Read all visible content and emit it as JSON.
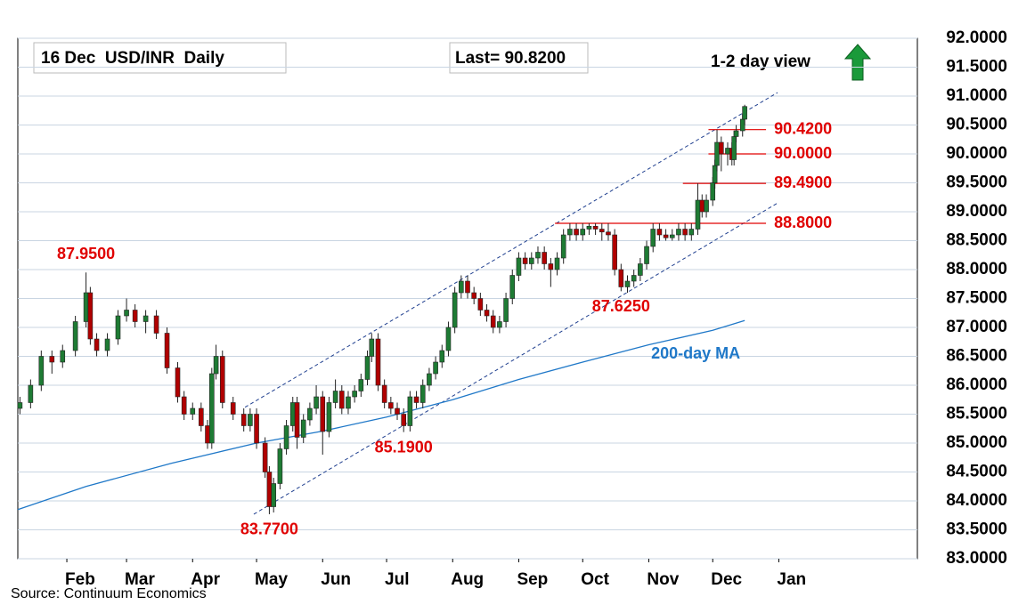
{
  "chart_data": {
    "type": "candlestick",
    "title": "16 Dec  USD/INR  Daily",
    "subtitle": "Last= 90.8200",
    "view_label": "1-2 day view",
    "source": "Source: Continuum Economics",
    "up_color": "#1e7b34",
    "down_color": "#b00000",
    "grid": true,
    "xlim": [
      8,
      430
    ],
    "xticks": [
      {
        "value": 31,
        "label": "Feb"
      },
      {
        "value": 59,
        "label": "Mar"
      },
      {
        "value": 90,
        "label": "Apr"
      },
      {
        "value": 120,
        "label": "May"
      },
      {
        "value": 151,
        "label": "Jun"
      },
      {
        "value": 181,
        "label": "Jul"
      },
      {
        "value": 212,
        "label": "Aug"
      },
      {
        "value": 243,
        "label": "Sep"
      },
      {
        "value": 273,
        "label": "Oct"
      },
      {
        "value": 304,
        "label": "Nov"
      },
      {
        "value": 334,
        "label": "Dec"
      },
      {
        "value": 365,
        "label": "Jan"
      }
    ],
    "ylim": [
      83,
      92
    ],
    "yticks": [
      {
        "value": 83,
        "label": "83.0000"
      },
      {
        "value": 83.5,
        "label": "83.5000"
      },
      {
        "value": 84,
        "label": "84.0000"
      },
      {
        "value": 84.5,
        "label": "84.5000"
      },
      {
        "value": 85,
        "label": "85.0000"
      },
      {
        "value": 85.5,
        "label": "85.5000"
      },
      {
        "value": 86,
        "label": "86.0000"
      },
      {
        "value": 86.5,
        "label": "86.5000"
      },
      {
        "value": 87,
        "label": "87.0000"
      },
      {
        "value": 87.5,
        "label": "87.5000"
      },
      {
        "value": 88,
        "label": "88.0000"
      },
      {
        "value": 88.5,
        "label": "88.5000"
      },
      {
        "value": 89,
        "label": "89.0000"
      },
      {
        "value": 89.5,
        "label": "89.5000"
      },
      {
        "value": 90,
        "label": "90.0000"
      },
      {
        "value": 90.5,
        "label": "90.5000"
      },
      {
        "value": 91,
        "label": "91.0000"
      },
      {
        "value": 91.5,
        "label": "91.5000"
      },
      {
        "value": 92,
        "label": "92.0000"
      }
    ],
    "x": [
      9,
      14,
      19,
      24,
      29,
      35,
      40,
      42,
      45,
      50,
      55,
      59,
      63,
      68,
      73,
      78,
      83,
      86,
      90,
      94,
      97,
      99,
      101,
      104,
      109,
      114,
      117,
      120,
      124,
      126,
      128,
      131,
      134,
      137,
      139,
      142,
      145,
      148,
      151,
      154,
      157,
      160,
      163,
      166,
      169,
      172,
      174,
      177,
      180,
      183,
      186,
      189,
      192,
      195,
      198,
      201,
      204,
      207,
      210,
      213,
      216,
      219,
      222,
      225,
      228,
      231,
      234,
      237,
      240,
      243,
      246,
      249,
      252,
      255,
      258,
      261,
      264,
      267,
      270,
      273,
      276,
      279,
      282,
      285,
      288,
      291,
      294,
      297,
      300,
      303,
      306,
      309,
      312,
      315,
      318,
      321,
      324,
      327,
      329,
      331,
      334,
      335,
      336,
      338,
      341,
      343,
      344,
      345,
      348,
      349
    ],
    "open": [
      85.6,
      85.7,
      86.0,
      86.5,
      86.4,
      86.6,
      87.1,
      87.6,
      86.8,
      86.6,
      86.8,
      87.2,
      87.3,
      87.1,
      87.2,
      86.9,
      86.3,
      85.8,
      85.5,
      85.6,
      85.3,
      85.0,
      86.2,
      86.5,
      85.7,
      85.5,
      85.3,
      85.5,
      85.0,
      84.5,
      83.9,
      84.3,
      84.9,
      85.3,
      85.7,
      85.1,
      85.4,
      85.6,
      85.8,
      85.2,
      85.7,
      85.9,
      85.6,
      85.8,
      85.9,
      86.1,
      86.5,
      86.8,
      86.0,
      85.7,
      85.6,
      85.5,
      85.3,
      85.8,
      85.7,
      86.0,
      86.2,
      86.4,
      86.6,
      87.0,
      87.6,
      87.8,
      87.6,
      87.5,
      87.3,
      87.2,
      87.0,
      87.1,
      87.5,
      87.9,
      88.2,
      88.1,
      88.2,
      88.3,
      88.1,
      88.0,
      88.2,
      88.6,
      88.7,
      88.6,
      88.7,
      88.75,
      88.7,
      88.65,
      88.6,
      88.0,
      87.7,
      87.8,
      87.9,
      88.1,
      88.4,
      88.7,
      88.6,
      88.55,
      88.6,
      88.7,
      88.6,
      88.7,
      89.2,
      89.0,
      89.2,
      89.5,
      89.8,
      90.2,
      90.0,
      90.1,
      89.9,
      90.3,
      90.4,
      90.6
    ],
    "high": [
      85.8,
      86.1,
      86.6,
      86.6,
      86.7,
      87.2,
      87.95,
      87.7,
      86.9,
      86.9,
      87.3,
      87.5,
      87.4,
      87.3,
      87.3,
      87.0,
      86.4,
      85.9,
      85.7,
      85.7,
      85.4,
      86.3,
      86.7,
      86.6,
      85.8,
      85.6,
      85.6,
      85.6,
      85.1,
      84.6,
      84.4,
      85.0,
      85.4,
      85.8,
      85.8,
      85.5,
      85.7,
      86.0,
      85.9,
      85.8,
      86.1,
      86.0,
      85.9,
      86.0,
      86.2,
      86.6,
      86.9,
      86.9,
      86.1,
      85.8,
      85.7,
      85.6,
      85.9,
      85.9,
      86.1,
      86.3,
      86.5,
      86.7,
      87.1,
      87.7,
      87.9,
      87.9,
      87.7,
      87.6,
      87.4,
      87.3,
      87.2,
      87.6,
      88.0,
      88.3,
      88.3,
      88.3,
      88.4,
      88.4,
      88.2,
      88.3,
      88.7,
      88.8,
      88.8,
      88.8,
      88.8,
      88.8,
      88.8,
      88.8,
      88.7,
      88.1,
      87.9,
      88.0,
      88.2,
      88.5,
      88.8,
      88.8,
      88.7,
      88.7,
      88.8,
      88.8,
      88.8,
      89.49,
      89.3,
      89.3,
      89.6,
      89.9,
      90.42,
      90.3,
      90.2,
      90.2,
      90.4,
      90.5,
      90.7,
      90.85
    ],
    "low": [
      85.5,
      85.6,
      85.9,
      86.2,
      86.3,
      86.5,
      87.0,
      86.7,
      86.5,
      86.5,
      86.7,
      87.1,
      87.0,
      86.9,
      86.8,
      86.2,
      85.7,
      85.4,
      85.4,
      85.2,
      84.9,
      84.9,
      86.1,
      85.6,
      85.4,
      85.2,
      85.2,
      84.9,
      84.4,
      83.77,
      83.8,
      84.2,
      84.8,
      85.2,
      84.9,
      85.0,
      85.3,
      85.5,
      84.8,
      85.1,
      85.6,
      85.5,
      85.5,
      85.7,
      85.8,
      86.0,
      86.4,
      85.9,
      85.6,
      85.5,
      85.4,
      85.19,
      85.2,
      85.6,
      85.6,
      85.9,
      86.1,
      86.3,
      86.5,
      86.9,
      87.5,
      87.5,
      87.4,
      87.2,
      87.1,
      86.9,
      86.9,
      87.0,
      87.4,
      87.8,
      88.0,
      88.0,
      88.1,
      88.0,
      87.7,
      87.9,
      88.1,
      88.5,
      88.5,
      88.5,
      88.6,
      88.6,
      88.5,
      88.5,
      87.9,
      87.625,
      87.6,
      87.7,
      87.8,
      88.0,
      88.3,
      88.5,
      88.5,
      88.5,
      88.5,
      88.5,
      88.5,
      88.6,
      88.9,
      88.9,
      89.1,
      89.4,
      89.7,
      89.7,
      89.8,
      89.8,
      89.8,
      90.2,
      90.3,
      90.5
    ],
    "close": [
      85.7,
      86.0,
      86.5,
      86.4,
      86.6,
      87.1,
      87.6,
      86.8,
      86.6,
      86.8,
      87.2,
      87.3,
      87.1,
      87.2,
      86.9,
      86.3,
      85.8,
      85.5,
      85.6,
      85.3,
      85.0,
      86.2,
      86.5,
      85.7,
      85.5,
      85.3,
      85.5,
      85.0,
      84.5,
      83.9,
      84.3,
      84.9,
      85.3,
      85.7,
      85.1,
      85.4,
      85.6,
      85.8,
      85.2,
      85.7,
      85.9,
      85.6,
      85.8,
      85.9,
      86.1,
      86.5,
      86.8,
      86.0,
      85.7,
      85.6,
      85.5,
      85.3,
      85.8,
      85.7,
      86.0,
      86.2,
      86.4,
      86.6,
      87.0,
      87.6,
      87.8,
      87.6,
      87.5,
      87.3,
      87.2,
      87.0,
      87.1,
      87.5,
      87.9,
      88.2,
      88.1,
      88.2,
      88.3,
      88.1,
      88.0,
      88.2,
      88.6,
      88.7,
      88.6,
      88.7,
      88.75,
      88.7,
      88.65,
      88.6,
      88.0,
      87.7,
      87.8,
      87.9,
      88.1,
      88.4,
      88.7,
      88.6,
      88.55,
      88.6,
      88.7,
      88.6,
      88.7,
      89.2,
      89.0,
      89.2,
      89.5,
      89.8,
      90.2,
      90.0,
      90.1,
      89.9,
      90.3,
      90.4,
      90.6,
      90.82
    ],
    "moving_average": {
      "name": "200-day MA",
      "color": "#1f78c8",
      "x": [
        8,
        40,
        80,
        120,
        150,
        181,
        212,
        243,
        273,
        304,
        334,
        349
      ],
      "values": [
        83.85,
        84.25,
        84.65,
        85.0,
        85.2,
        85.45,
        85.75,
        86.1,
        86.4,
        86.7,
        86.95,
        87.12
      ]
    },
    "channel": [
      {
        "x": [
          114.6,
          364.4
        ],
        "values": [
          85.62,
          91.06
        ]
      },
      {
        "x": [
          118.7,
          364.4
        ],
        "values": [
          83.77,
          89.15
        ]
      }
    ],
    "levels": [
      {
        "value": 90.42,
        "label": "90.4200",
        "x": [
          332,
          359
        ]
      },
      {
        "value": 90.0,
        "label": "90.0000",
        "x": [
          332,
          359
        ]
      },
      {
        "value": 89.49,
        "label": "89.4900",
        "x": [
          320,
          359
        ]
      },
      {
        "value": 88.8,
        "label": "88.8000",
        "x": [
          260,
          359
        ]
      }
    ],
    "annotations": [
      {
        "x": 40,
        "value": 87.95,
        "label": "87.9500",
        "position": "above"
      },
      {
        "x": 126,
        "value": 83.77,
        "label": "83.7700",
        "position": "below"
      },
      {
        "x": 189,
        "value": 85.19,
        "label": "85.1900",
        "position": "below"
      },
      {
        "x": 291,
        "value": 87.625,
        "label": "87.6250",
        "position": "below"
      }
    ]
  }
}
